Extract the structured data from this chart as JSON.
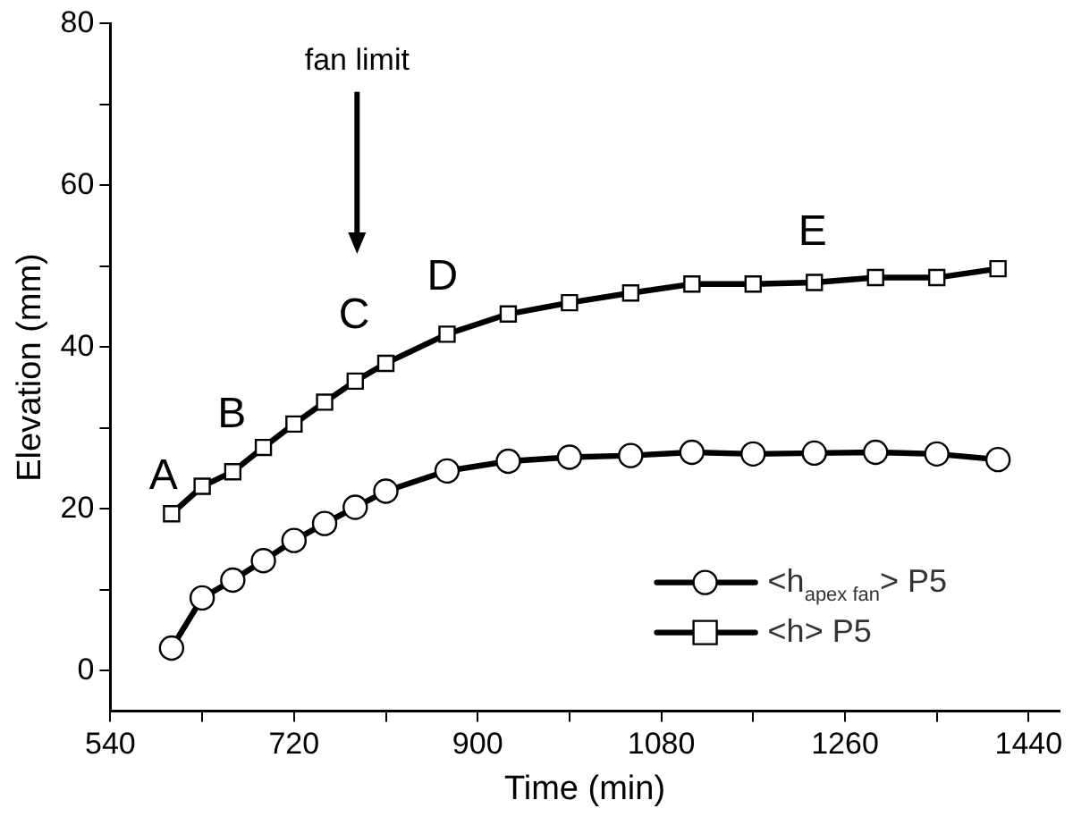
{
  "chart_data": {
    "type": "line",
    "xlabel": "Time (min)",
    "ylabel": "Elevation (mm)",
    "xlim": [
      540,
      1470
    ],
    "xticks": [
      540,
      {
        "value": 630,
        "label": null
      },
      720,
      {
        "value": 810,
        "label": null
      },
      900,
      {
        "value": 990,
        "label": null
      },
      1080,
      {
        "value": 1170,
        "label": null
      },
      1260,
      {
        "value": 1350,
        "label": null
      },
      1440
    ],
    "ylim": [
      -5,
      80
    ],
    "yticks": [
      0,
      {
        "value": 10,
        "label": null
      },
      20,
      {
        "value": 30,
        "label": null
      },
      40,
      {
        "value": 50,
        "label": null
      },
      60,
      {
        "value": 70,
        "label": null
      },
      80
    ],
    "grid": false,
    "legend": "bottom right",
    "line_style": "solid",
    "x": [
      600,
      630,
      660,
      690,
      720,
      750,
      780,
      810,
      870,
      930,
      990,
      1050,
      1110,
      1170,
      1230,
      1290,
      1350,
      1410
    ],
    "series": [
      {
        "name": "<h$_{apex fan}$> P5",
        "color": "#000000",
        "marker": "circle",
        "values": [
          2.8,
          9.0,
          11.2,
          13.6,
          16.1,
          18.2,
          20.2,
          22.2,
          24.7,
          25.9,
          26.4,
          26.6,
          27.0,
          26.8,
          26.9,
          27.0,
          26.8,
          26.1
        ]
      },
      {
        "name": "<h> P5",
        "color": "#000000",
        "marker": "square",
        "values": [
          19.4,
          22.8,
          24.6,
          27.6,
          30.5,
          33.2,
          35.8,
          38.0,
          41.6,
          44.1,
          45.5,
          46.7,
          47.8,
          47.8,
          48.0,
          48.6,
          48.6,
          49.7
        ]
      }
    ],
    "annotations": [
      "A",
      "B",
      "C",
      "D",
      "E",
      "fan limit"
    ]
  }
}
